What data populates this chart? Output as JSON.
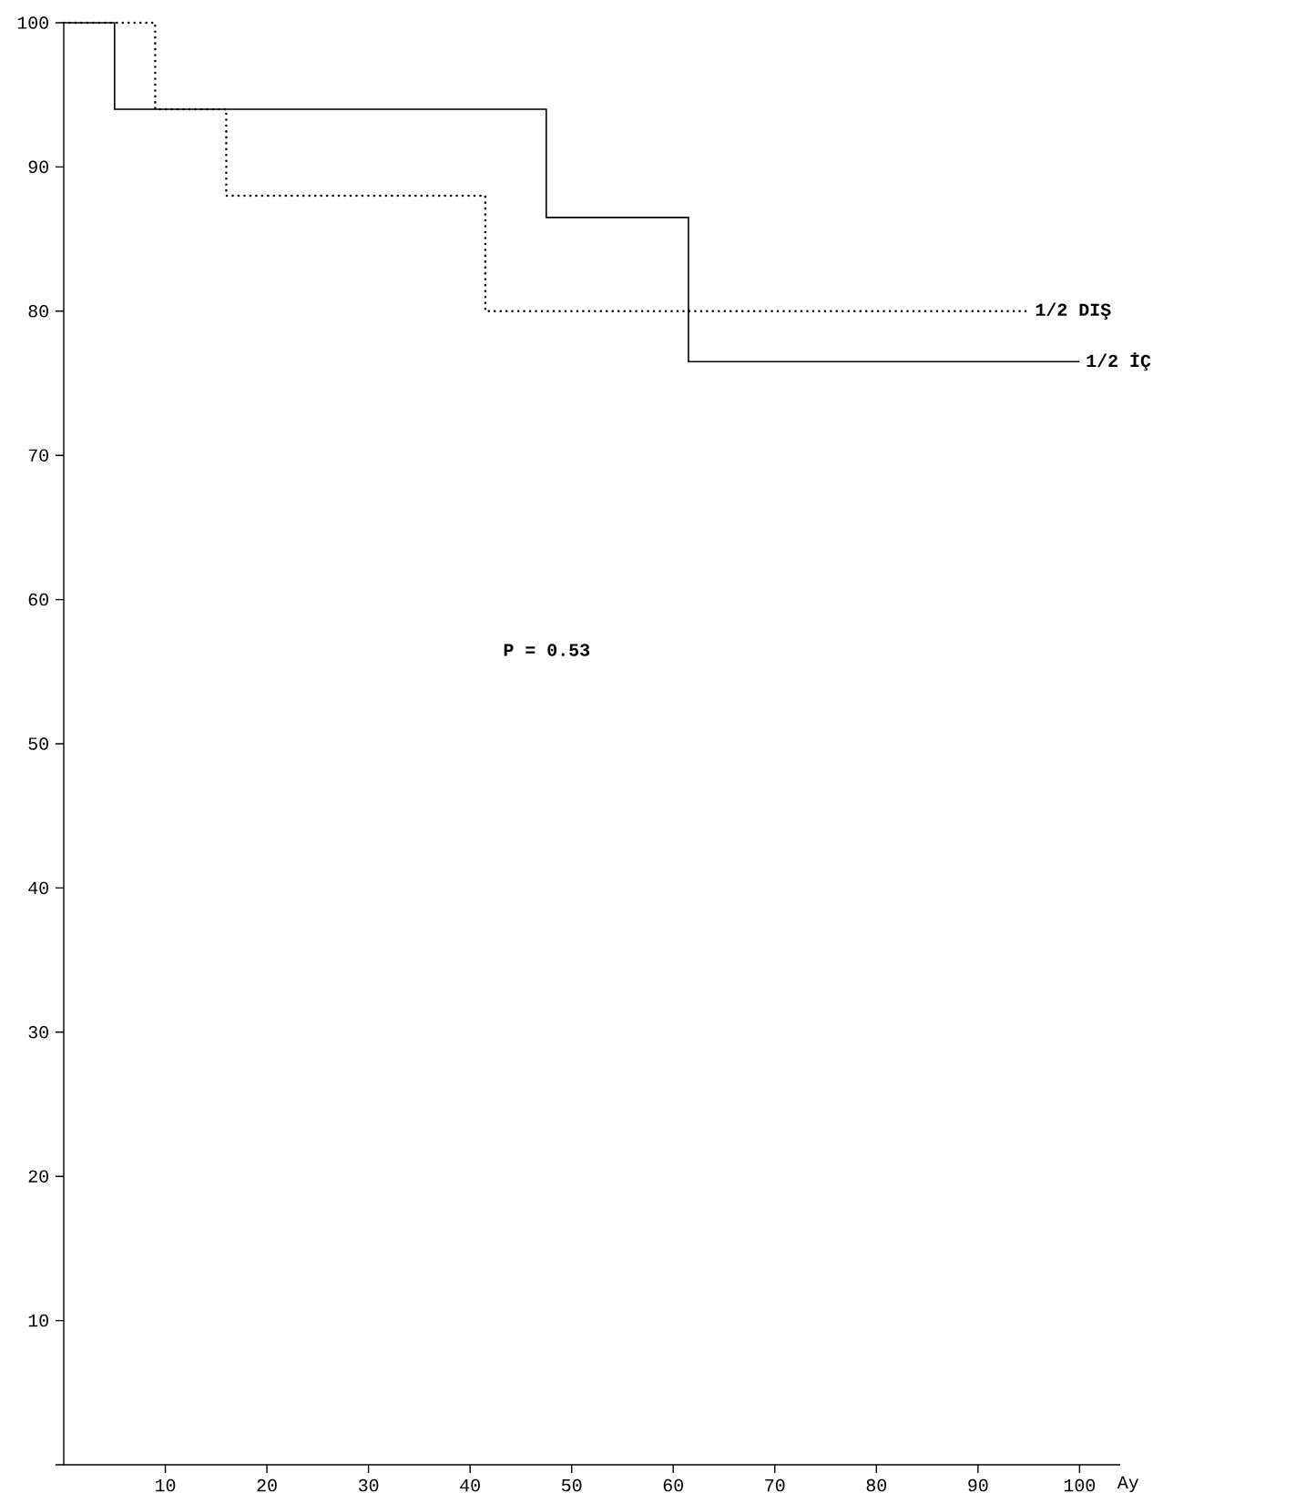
{
  "chart_data": {
    "type": "step",
    "xlabel": "Ay",
    "xlim": [
      0,
      104
    ],
    "ylim": [
      0,
      100
    ],
    "xticks": [
      10,
      20,
      30,
      40,
      50,
      60,
      70,
      80,
      90,
      100
    ],
    "yticks": [
      {
        "value": 0,
        "label": null
      },
      10,
      20,
      30,
      40,
      50,
      60,
      70,
      80,
      90,
      100
    ],
    "annotations": [
      "P = 0.53"
    ],
    "series": [
      {
        "name": "1/2 İÇ",
        "color": "#000000",
        "line_style": "solid",
        "x": [
          0,
          5,
          47.5,
          61.5,
          100
        ],
        "values": [
          100,
          94,
          86.5,
          76.5,
          76.5
        ]
      },
      {
        "name": "1/2 DIŞ",
        "color": "#000000",
        "line_style": "dotted",
        "x": [
          0,
          9,
          16,
          41.5,
          95
        ],
        "values": [
          100,
          94,
          88,
          80,
          80
        ]
      }
    ]
  }
}
